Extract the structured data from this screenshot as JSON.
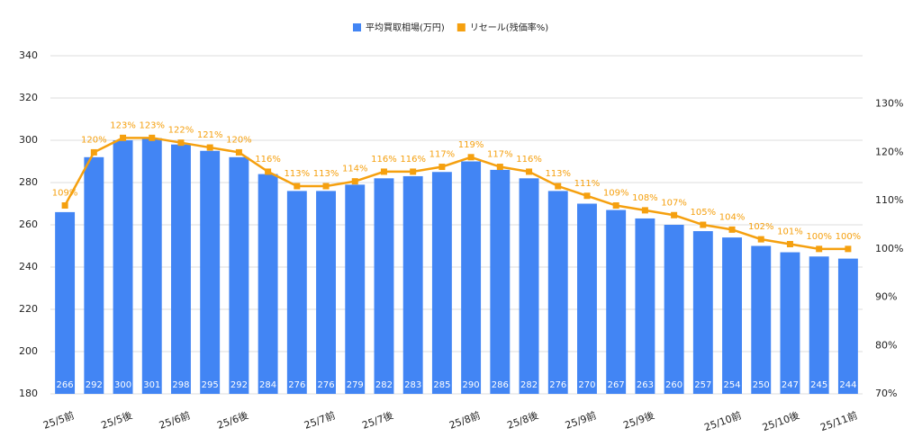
{
  "chart_data": {
    "type": "bar-line",
    "categories": [
      "25/5前",
      null,
      "25/5後",
      null,
      "25/6前",
      null,
      "25/6後",
      null,
      null,
      "25/7前",
      null,
      "25/7後",
      null,
      null,
      "25/8前",
      null,
      "25/8後",
      null,
      "25/9前",
      null,
      "25/9後",
      null,
      null,
      "25/10前",
      null,
      "25/10後",
      null,
      "25/11前"
    ],
    "series": [
      {
        "name": "平均買取相場(万円)",
        "color": "#4285f4",
        "type": "bar",
        "values": [
          266,
          292,
          300,
          301,
          298,
          295,
          292,
          284,
          276,
          276,
          279,
          282,
          283,
          285,
          290,
          286,
          282,
          276,
          270,
          267,
          263,
          260,
          257,
          254,
          250,
          247,
          245,
          244
        ]
      },
      {
        "name": "リセール(残価率%)",
        "color": "#f5a00f",
        "type": "line",
        "axis": "y2",
        "values": [
          109,
          120,
          123,
          123,
          122,
          121,
          120,
          116,
          113,
          113,
          114,
          116,
          116,
          117,
          119,
          117,
          116,
          113,
          111,
          109,
          108,
          107,
          105,
          104,
          102,
          101,
          100,
          100
        ],
        "value_labels": [
          "109%",
          "120%",
          "123%",
          "123%",
          "122%",
          "121%",
          "120%",
          "116%",
          "113%",
          "113%",
          "114%",
          "116%",
          "116%",
          "117%",
          "119%",
          "117%",
          "116%",
          "113%",
          "111%",
          "109%",
          "108%",
          "107%",
          "105%",
          "104%",
          "102%",
          "101%",
          "100%",
          "100%"
        ]
      }
    ],
    "ylim": [
      180,
      340
    ],
    "yticks": [
      180,
      200,
      220,
      240,
      260,
      280,
      300,
      320,
      340
    ],
    "y2lim": [
      70,
      140
    ],
    "y2ticks": [
      {
        "value": 70,
        "label": "70%"
      },
      {
        "value": 80,
        "label": "80%"
      },
      {
        "value": 90,
        "label": "90%"
      },
      {
        "value": 100,
        "label": "100%"
      },
      {
        "value": 110,
        "label": "110%"
      },
      {
        "value": 120,
        "label": "120%"
      },
      {
        "value": 130,
        "label": "130%"
      }
    ],
    "grid": true,
    "legend": "top"
  }
}
